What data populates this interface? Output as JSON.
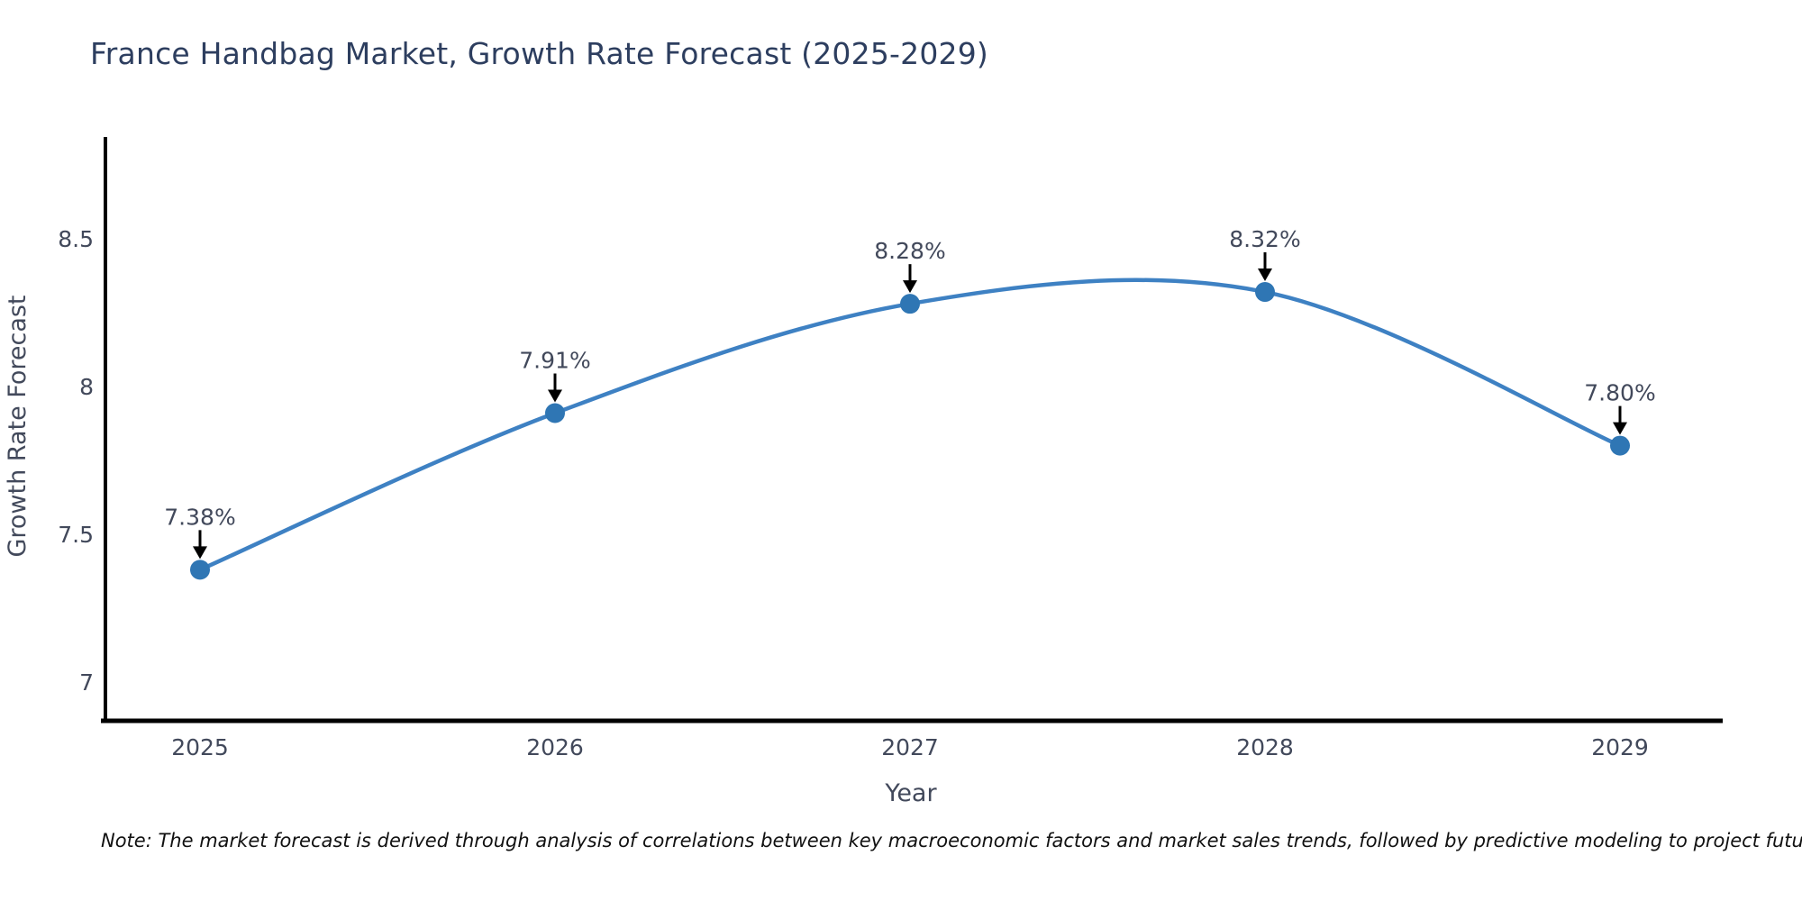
{
  "title": "France Handbag Market, Growth Rate Forecast (2025-2029)",
  "note": "Note: The market forecast is derived through analysis of correlations between key macroeconomic factors and market sales trends, followed by predictive modeling to project future sales",
  "chart_data": {
    "type": "line",
    "title": "France Handbag Market, Growth Rate Forecast (2025-2029)",
    "xlabel": "Year",
    "ylabel": "Growth Rate Forecast",
    "x": [
      2025,
      2026,
      2027,
      2028,
      2029
    ],
    "values": [
      7.38,
      7.91,
      8.28,
      8.32,
      7.8
    ],
    "point_labels": [
      "7.38%",
      "7.91%",
      "8.28%",
      "8.32%",
      "7.80%"
    ],
    "x_tick_labels": [
      "2025",
      "2026",
      "2027",
      "2028",
      "2029"
    ],
    "yticks": [
      8.5,
      8,
      7.5,
      7
    ],
    "ylim": [
      6.87,
      8.98
    ],
    "grid": false,
    "legend_position": "none",
    "curve_style": "smooth-spline",
    "annotation_style": "black-arrow-down",
    "colors": {
      "line": "#3e81c3",
      "marker": "#2f76b4",
      "axis": "#000000",
      "arrow": "#000000",
      "title_text": "#2d3e5f",
      "tick_text": "#42495b",
      "note_text": "#111111"
    }
  }
}
